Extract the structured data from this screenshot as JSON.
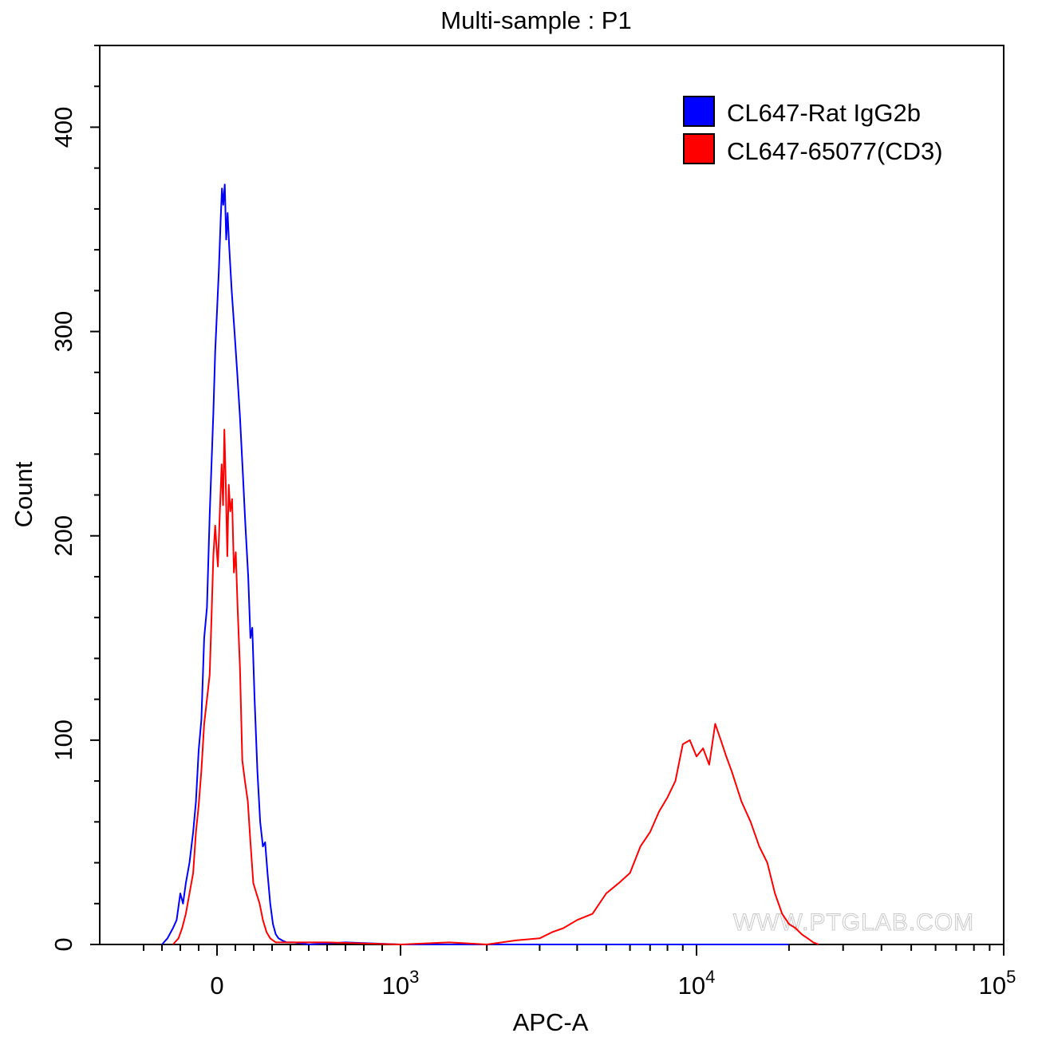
{
  "chart_data": {
    "type": "line",
    "title": "Multi-sample : P1",
    "xlabel": "APC-A",
    "ylabel": "Count",
    "x_scale": "biexponential",
    "ylim": [
      0,
      440
    ],
    "x_tick_labels": [
      {
        "base": "0",
        "exp": ""
      },
      {
        "base": "10",
        "exp": "3"
      },
      {
        "base": "10",
        "exp": "4"
      },
      {
        "base": "10",
        "exp": "5"
      }
    ],
    "y_ticks": [
      0,
      100,
      200,
      300,
      400
    ],
    "y_tick_labels": [
      "0",
      "100",
      "200",
      "300",
      "400"
    ],
    "legend_position": "top-right",
    "grid": false,
    "watermark": "WWW.PTGLAB.COM",
    "series": [
      {
        "name": "CL647-Rat IgG2b",
        "color": "#0000ff",
        "points": [
          [
            -300,
            0
          ],
          [
            -270,
            3
          ],
          [
            -240,
            8
          ],
          [
            -220,
            12
          ],
          [
            -200,
            25
          ],
          [
            -185,
            20
          ],
          [
            -170,
            30
          ],
          [
            -150,
            40
          ],
          [
            -130,
            55
          ],
          [
            -115,
            70
          ],
          [
            -100,
            95
          ],
          [
            -85,
            110
          ],
          [
            -70,
            150
          ],
          [
            -55,
            165
          ],
          [
            -40,
            210
          ],
          [
            -30,
            235
          ],
          [
            -20,
            260
          ],
          [
            -10,
            290
          ],
          [
            0,
            310
          ],
          [
            10,
            330
          ],
          [
            20,
            355
          ],
          [
            27,
            370
          ],
          [
            34,
            362
          ],
          [
            42,
            372
          ],
          [
            50,
            345
          ],
          [
            58,
            358
          ],
          [
            66,
            342
          ],
          [
            80,
            320
          ],
          [
            95,
            300
          ],
          [
            110,
            280
          ],
          [
            125,
            258
          ],
          [
            140,
            232
          ],
          [
            155,
            205
          ],
          [
            170,
            180
          ],
          [
            182,
            150
          ],
          [
            192,
            155
          ],
          [
            205,
            120
          ],
          [
            220,
            85
          ],
          [
            235,
            60
          ],
          [
            250,
            48
          ],
          [
            262,
            50
          ],
          [
            275,
            35
          ],
          [
            290,
            20
          ],
          [
            305,
            10
          ],
          [
            320,
            5
          ],
          [
            335,
            3
          ],
          [
            355,
            2
          ],
          [
            380,
            1
          ],
          [
            420,
            1
          ],
          [
            500,
            0
          ],
          [
            700,
            1
          ],
          [
            1000,
            0
          ],
          [
            2000,
            0
          ],
          [
            3000,
            0
          ],
          [
            5000,
            0
          ],
          [
            10000,
            0
          ],
          [
            20000,
            0
          ]
        ]
      },
      {
        "name": "CL647-65077(CD3)",
        "color": "#ff0000",
        "points": [
          [
            -240,
            0
          ],
          [
            -210,
            3
          ],
          [
            -190,
            8
          ],
          [
            -170,
            15
          ],
          [
            -150,
            25
          ],
          [
            -130,
            35
          ],
          [
            -115,
            55
          ],
          [
            -100,
            68
          ],
          [
            -85,
            85
          ],
          [
            -70,
            108
          ],
          [
            -55,
            120
          ],
          [
            -40,
            132
          ],
          [
            -30,
            160
          ],
          [
            -20,
            190
          ],
          [
            -10,
            205
          ],
          [
            -3,
            195
          ],
          [
            5,
            185
          ],
          [
            15,
            210
          ],
          [
            25,
            235
          ],
          [
            33,
            215
          ],
          [
            40,
            252
          ],
          [
            48,
            225
          ],
          [
            56,
            190
          ],
          [
            64,
            225
          ],
          [
            72,
            212
          ],
          [
            82,
            218
          ],
          [
            92,
            182
          ],
          [
            102,
            192
          ],
          [
            112,
            165
          ],
          [
            125,
            135
          ],
          [
            138,
            90
          ],
          [
            152,
            80
          ],
          [
            168,
            70
          ],
          [
            182,
            50
          ],
          [
            198,
            30
          ],
          [
            215,
            25
          ],
          [
            232,
            20
          ],
          [
            250,
            12
          ],
          [
            270,
            6
          ],
          [
            290,
            3
          ],
          [
            320,
            1
          ],
          [
            400,
            1
          ],
          [
            600,
            1
          ],
          [
            1000,
            0
          ],
          [
            1500,
            1
          ],
          [
            2000,
            0
          ],
          [
            2500,
            2
          ],
          [
            3000,
            3
          ],
          [
            3300,
            6
          ],
          [
            3600,
            8
          ],
          [
            4000,
            12
          ],
          [
            4500,
            15
          ],
          [
            5000,
            25
          ],
          [
            5500,
            30
          ],
          [
            6000,
            35
          ],
          [
            6500,
            48
          ],
          [
            7000,
            55
          ],
          [
            7500,
            65
          ],
          [
            8000,
            72
          ],
          [
            8500,
            80
          ],
          [
            9000,
            98
          ],
          [
            9500,
            100
          ],
          [
            10000,
            92
          ],
          [
            10500,
            96
          ],
          [
            11000,
            88
          ],
          [
            11500,
            108
          ],
          [
            12000,
            100
          ],
          [
            12500,
            92
          ],
          [
            13000,
            85
          ],
          [
            14000,
            70
          ],
          [
            15000,
            60
          ],
          [
            16000,
            48
          ],
          [
            17000,
            40
          ],
          [
            18000,
            25
          ],
          [
            19000,
            15
          ],
          [
            20000,
            10
          ],
          [
            21000,
            8
          ],
          [
            22000,
            5
          ],
          [
            23000,
            3
          ],
          [
            24000,
            1
          ],
          [
            25000,
            0
          ]
        ]
      }
    ]
  }
}
